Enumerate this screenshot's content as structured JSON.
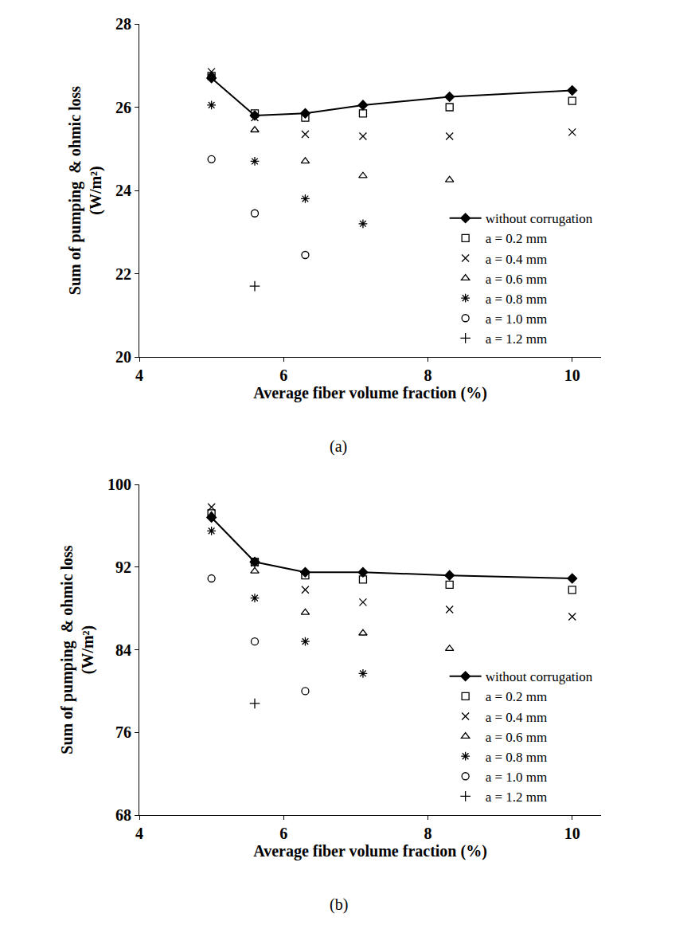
{
  "chart_data": [
    {
      "type": "scatter",
      "caption": "(a)",
      "x_label": "Average fiber volume fraction (%)",
      "y_label": "Sum of pumping  & ohmic loss\n(W/m²)",
      "x": [
        5,
        5.6,
        6.3,
        7.1,
        8.3,
        10
      ],
      "xlim": [
        4,
        10.4
      ],
      "xticks": [
        4,
        6,
        8,
        10
      ],
      "ylim": [
        20,
        28
      ],
      "yticks": [
        20,
        22,
        24,
        26,
        28
      ],
      "grid": false,
      "legend": "bottom right",
      "series": [
        {
          "name": "without corrugation",
          "color": "#000000",
          "marker": "diamond",
          "line_style": "solid",
          "values": [
            26.7,
            25.8,
            25.85,
            26.05,
            26.25,
            26.4
          ]
        },
        {
          "name": "a = 0.2 mm",
          "color": "#000000",
          "marker": "square-open",
          "line_style": "none",
          "values": [
            26.75,
            25.85,
            25.75,
            25.85,
            26.0,
            26.15
          ]
        },
        {
          "name": "a = 0.4 mm",
          "color": "#000000",
          "marker": "x-thin-open",
          "line_style": "none",
          "values": [
            26.85,
            25.75,
            25.35,
            25.3,
            25.3,
            25.4
          ]
        },
        {
          "name": "a = 0.6 mm",
          "color": "#000000",
          "marker": "triangle-up-open",
          "line_style": "none",
          "values": [
            26.75,
            25.45,
            24.7,
            24.35,
            24.25,
            null
          ]
        },
        {
          "name": "a = 0.8 mm",
          "color": "#000000",
          "marker": "asterisk-open",
          "line_style": "none",
          "values": [
            26.05,
            24.7,
            23.8,
            23.2,
            null,
            null
          ]
        },
        {
          "name": "a = 1.0 mm",
          "color": "#000000",
          "marker": "circle-open",
          "line_style": "none",
          "values": [
            24.75,
            23.45,
            22.45,
            null,
            null,
            null
          ]
        },
        {
          "name": "a = 1.2 mm",
          "color": "#000000",
          "marker": "cross-thin-open",
          "line_style": "none",
          "values": [
            null,
            21.7,
            null,
            null,
            null,
            null
          ]
        }
      ]
    },
    {
      "type": "scatter",
      "caption": "(b)",
      "x_label": "Average fiber volume fraction (%)",
      "y_label": "Sum of pumping  & ohmic loss\n(W/m²)",
      "x": [
        5,
        5.6,
        6.3,
        7.1,
        8.3,
        10
      ],
      "xlim": [
        4,
        10.4
      ],
      "xticks": [
        4,
        6,
        8,
        10
      ],
      "ylim": [
        68,
        100
      ],
      "yticks": [
        68,
        76,
        84,
        92,
        100
      ],
      "grid": false,
      "legend": "bottom right",
      "series": [
        {
          "name": "without corrugation",
          "color": "#000000",
          "marker": "diamond",
          "line_style": "solid",
          "values": [
            96.8,
            92.5,
            91.5,
            91.5,
            91.2,
            90.9
          ]
        },
        {
          "name": "a = 0.2 mm",
          "color": "#000000",
          "marker": "square-open",
          "line_style": "none",
          "values": [
            97.2,
            92.5,
            91.2,
            90.8,
            90.3,
            89.8
          ]
        },
        {
          "name": "a = 0.4 mm",
          "color": "#000000",
          "marker": "x-thin-open",
          "line_style": "none",
          "values": [
            97.8,
            92.4,
            89.8,
            88.6,
            87.9,
            87.2
          ]
        },
        {
          "name": "a = 0.6 mm",
          "color": "#000000",
          "marker": "triangle-up-open",
          "line_style": "none",
          "values": [
            97.0,
            91.6,
            87.6,
            85.6,
            84.1,
            null
          ]
        },
        {
          "name": "a = 0.8 mm",
          "color": "#000000",
          "marker": "asterisk-open",
          "line_style": "none",
          "values": [
            95.5,
            89.0,
            84.8,
            81.7,
            null,
            null
          ]
        },
        {
          "name": "a = 1.0 mm",
          "color": "#000000",
          "marker": "circle-open",
          "line_style": "none",
          "values": [
            90.9,
            84.8,
            80.0,
            null,
            null,
            null
          ]
        },
        {
          "name": "a = 1.2 mm",
          "color": "#000000",
          "marker": "cross-thin-open",
          "line_style": "none",
          "values": [
            null,
            78.8,
            null,
            null,
            null,
            null
          ]
        }
      ]
    }
  ]
}
